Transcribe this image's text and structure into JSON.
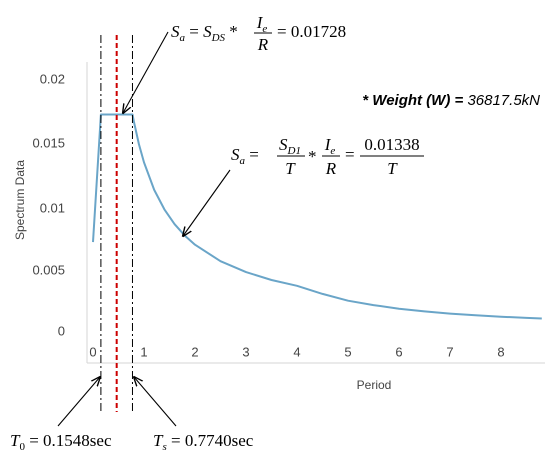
{
  "chart_data": {
    "type": "line",
    "title": "",
    "xlabel": "Period",
    "ylabel": "Spectrum Data",
    "xlim": [
      -0.1,
      8.8
    ],
    "ylim": [
      0,
      0.02
    ],
    "xticks": [
      "0",
      "1",
      "2",
      "3",
      "4",
      "5",
      "6",
      "7",
      "8"
    ],
    "yticks": [
      "0",
      "0.005",
      "0.01",
      "0.015",
      "0.02"
    ],
    "grid": false,
    "series": [
      {
        "color": "#6aa5c8",
        "x": [
          0,
          0.1548,
          0.774,
          0.8,
          0.9,
          1.0,
          1.2,
          1.4,
          1.6,
          1.8,
          2.0,
          2.5,
          3.0,
          3.5,
          4.0,
          4.5,
          5.0,
          5.5,
          6.0,
          6.5,
          7.0,
          7.5,
          8.0,
          8.5,
          8.8
        ],
        "y": [
          0.0069,
          0.01728,
          0.01728,
          0.01673,
          0.01487,
          0.01338,
          0.01115,
          0.00956,
          0.00836,
          0.00743,
          0.00669,
          0.00535,
          0.00446,
          0.00382,
          0.00335,
          0.00269,
          0.00214,
          0.00178,
          0.00149,
          0.00127,
          0.00109,
          0.00095,
          0.00084,
          0.00074,
          0.00069
        ]
      }
    ],
    "reference_lines": [
      {
        "x": 0.1548,
        "style": "dashdot",
        "color": "#000000"
      },
      {
        "x": 0.774,
        "style": "dashdot",
        "color": "#000000"
      },
      {
        "x": 0.4644,
        "style": "dashed",
        "color": "#cc0000"
      }
    ],
    "annotations": {
      "weight": "* Weight (W) = 36817.5kN",
      "t0": {
        "sym": "T",
        "sub": "0",
        "rest": " = 0.1548sec"
      },
      "ts": {
        "sym": "T",
        "sub": "s",
        "rest": " = 0.7740sec"
      },
      "plateau": {
        "value": "0.01728"
      },
      "descending": {
        "numerator": "0.01338"
      }
    }
  }
}
